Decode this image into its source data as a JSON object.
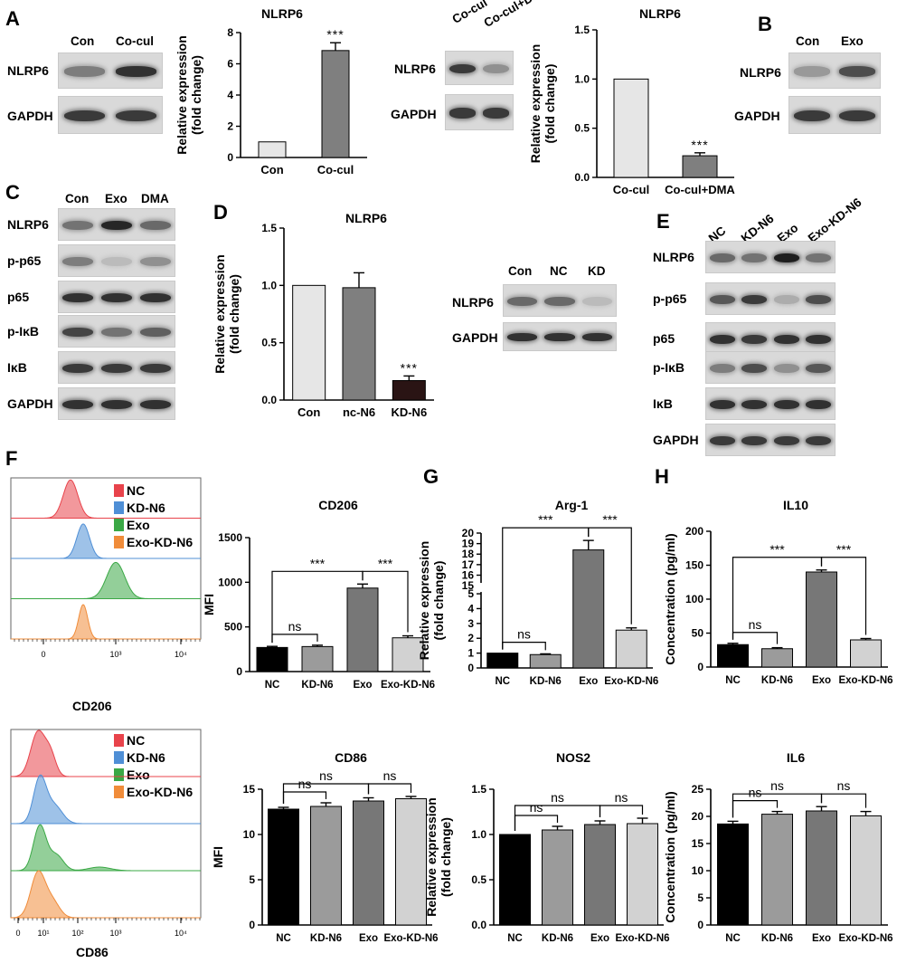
{
  "panels": {
    "A": "A",
    "B": "B",
    "C": "C",
    "D": "D",
    "E": "E",
    "F": "F",
    "G": "G",
    "H": "H"
  },
  "blots": {
    "A": {
      "lanes": [
        "Con",
        "Co-cul"
      ],
      "rows": [
        "NLRP6",
        "GAPDH"
      ],
      "intensity": [
        [
          0.45,
          0.85
        ],
        [
          0.8,
          0.8
        ]
      ]
    },
    "A2": {
      "lanes": [
        "Co-cul",
        "Co-cul+DMA"
      ],
      "rows": [
        "NLRP6",
        "GAPDH"
      ],
      "intensity": [
        [
          0.8,
          0.35
        ],
        [
          0.8,
          0.8
        ]
      ]
    },
    "B": {
      "lanes": [
        "Con",
        "Exo"
      ],
      "rows": [
        "NLRP6",
        "GAPDH"
      ],
      "intensity": [
        [
          0.3,
          0.7
        ],
        [
          0.8,
          0.8
        ]
      ]
    },
    "C": {
      "lanes": [
        "Con",
        "Exo",
        "DMA"
      ],
      "rows": [
        "NLRP6",
        "p-p65",
        "p65",
        "p-IκB",
        "IκB",
        "GAPDH"
      ],
      "intensity": [
        [
          0.5,
          0.9,
          0.55
        ],
        [
          0.45,
          0.12,
          0.35
        ],
        [
          0.85,
          0.85,
          0.85
        ],
        [
          0.75,
          0.5,
          0.6
        ],
        [
          0.8,
          0.8,
          0.8
        ],
        [
          0.85,
          0.85,
          0.85
        ]
      ]
    },
    "D": {
      "lanes": [
        "Con",
        "NC",
        "KD"
      ],
      "rows": [
        "NLRP6",
        "GAPDH"
      ],
      "intensity": [
        [
          0.55,
          0.55,
          0.12
        ],
        [
          0.85,
          0.85,
          0.85
        ]
      ]
    },
    "E": {
      "lanes": [
        "NC",
        "KD-N6",
        "Exo",
        "Exo-KD-N6"
      ],
      "rows": [
        "NLRP6",
        "p-p65",
        "p65",
        "p-IκB",
        "IκB",
        "GAPDH"
      ],
      "intensity": [
        [
          0.55,
          0.5,
          0.95,
          0.5
        ],
        [
          0.65,
          0.8,
          0.2,
          0.7
        ],
        [
          0.85,
          0.8,
          0.85,
          0.85
        ],
        [
          0.45,
          0.7,
          0.35,
          0.65
        ],
        [
          0.85,
          0.85,
          0.85,
          0.85
        ],
        [
          0.8,
          0.8,
          0.8,
          0.8
        ]
      ]
    }
  },
  "flow": {
    "legend": [
      {
        "label": "NC",
        "color": "#e8434b"
      },
      {
        "label": "KD-N6",
        "color": "#4f8fd6"
      },
      {
        "label": "Exo",
        "color": "#3aa845"
      },
      {
        "label": "Exo-KD-N6",
        "color": "#f08c3a"
      }
    ],
    "top": {
      "xlabel": "CD206",
      "ticks": [
        "0",
        "10³",
        "10⁴"
      ]
    },
    "bottom": {
      "xlabel": "CD86",
      "ticks": [
        "0",
        "10¹",
        "10²",
        "10³",
        "10⁴"
      ]
    }
  },
  "chart_data": [
    {
      "id": "A1",
      "type": "bar",
      "title": "NLRP6",
      "ylabel": "Relative expression\n(fold change)",
      "categories": [
        "Con",
        "Co-cul"
      ],
      "values": [
        1.0,
        6.85
      ],
      "errors": [
        0,
        0.5
      ],
      "ylim": [
        0,
        8
      ],
      "yticks": [
        0,
        2,
        4,
        6,
        8
      ],
      "ytick_labels": [
        "0",
        "2",
        "4",
        "6",
        "8"
      ],
      "colors": [
        "#e6e6e6",
        "#7f7f7f"
      ],
      "sig": [
        {
          "bar": 1,
          "text": "***"
        }
      ]
    },
    {
      "id": "A2",
      "type": "bar",
      "title": "NLRP6",
      "ylabel": "Relative expression\n(fold change)",
      "categories": [
        "Co-cul",
        "Co-cul+DMA"
      ],
      "values": [
        1.0,
        0.22
      ],
      "errors": [
        0,
        0.03
      ],
      "ylim": [
        0,
        1.5
      ],
      "yticks": [
        0,
        0.5,
        1.0,
        1.5
      ],
      "ytick_labels": [
        "0.0",
        "0.5",
        "1.0",
        "1.5"
      ],
      "colors": [
        "#e6e6e6",
        "#7f7f7f"
      ],
      "sig": [
        {
          "bar": 1,
          "text": "***"
        }
      ]
    },
    {
      "id": "D",
      "type": "bar",
      "title": "NLRP6",
      "ylabel": "Relative expression\n(fold change)",
      "categories": [
        "Con",
        "nc-N6",
        "KD-N6"
      ],
      "values": [
        1.0,
        0.98,
        0.17
      ],
      "errors": [
        0,
        0.13,
        0.04
      ],
      "ylim": [
        0,
        1.5
      ],
      "yticks": [
        0,
        0.5,
        1.0,
        1.5
      ],
      "ytick_labels": [
        "0.0",
        "0.5",
        "1.0",
        "1.5"
      ],
      "colors": [
        "#e6e6e6",
        "#7f7f7f",
        "#2a1414"
      ],
      "sig": [
        {
          "bar": 2,
          "text": "***"
        }
      ]
    },
    {
      "id": "F1",
      "type": "bar",
      "title": "CD206",
      "ylabel": "MFI",
      "categories": [
        "NC",
        "KD-N6",
        "Exo",
        "Exo-KD-N6"
      ],
      "values": [
        270,
        280,
        935,
        378
      ],
      "errors": [
        12,
        15,
        45,
        22
      ],
      "ylim": [
        0,
        1500
      ],
      "yticks": [
        0,
        500,
        1000,
        1500
      ],
      "ytick_labels": [
        "0",
        "500",
        "1000",
        "1500"
      ],
      "colors": [
        "#000000",
        "#9b9b9b",
        "#777777",
        "#d2d2d2"
      ],
      "brackets": [
        {
          "from": 0,
          "to": 1,
          "text": "ns",
          "level": 0
        },
        {
          "from": 0,
          "to": 2,
          "text": "***",
          "level": 1
        },
        {
          "from": 2,
          "to": 3,
          "text": "***",
          "level": 1
        }
      ]
    },
    {
      "id": "G",
      "type": "bar",
      "title": "Arg-1",
      "ylabel": "Relative expression\n(fold change)",
      "categories": [
        "NC",
        "KD-N6",
        "Exo",
        "Exo-KD-N6"
      ],
      "values": [
        1.0,
        0.9,
        18.4,
        2.55
      ],
      "errors": [
        0,
        0.05,
        0.9,
        0.15
      ],
      "ylim": [
        0,
        20
      ],
      "axis_break": [
        5,
        15
      ],
      "yticks": [
        0,
        1,
        2,
        3,
        4,
        5,
        15,
        16,
        17,
        18,
        19,
        20
      ],
      "ytick_labels": [
        "0",
        "1",
        "2",
        "3",
        "4",
        "5",
        "15",
        "16",
        "17",
        "18",
        "19",
        "20"
      ],
      "colors": [
        "#000000",
        "#9b9b9b",
        "#777777",
        "#d2d2d2"
      ],
      "brackets": [
        {
          "from": 0,
          "to": 1,
          "text": "ns",
          "level": 0
        },
        {
          "from": 0,
          "to": 2,
          "text": "***",
          "level": 1
        },
        {
          "from": 2,
          "to": 3,
          "text": "***",
          "level": 1
        }
      ]
    },
    {
      "id": "H1",
      "type": "bar",
      "title": "IL10",
      "ylabel": "Concentration (pg/ml)",
      "categories": [
        "NC",
        "KD-N6",
        "Exo",
        "Exo-KD-N6"
      ],
      "values": [
        33,
        27,
        140,
        40
      ],
      "errors": [
        2,
        1.5,
        3,
        2
      ],
      "ylim": [
        0,
        200
      ],
      "yticks": [
        0,
        50,
        100,
        150,
        200
      ],
      "ytick_labels": [
        "0",
        "50",
        "100",
        "150",
        "200"
      ],
      "colors": [
        "#000000",
        "#9b9b9b",
        "#777777",
        "#d2d2d2"
      ],
      "brackets": [
        {
          "from": 0,
          "to": 1,
          "text": "ns",
          "level": 0
        },
        {
          "from": 0,
          "to": 2,
          "text": "***",
          "level": 1
        },
        {
          "from": 2,
          "to": 3,
          "text": "***",
          "level": 1
        }
      ]
    },
    {
      "id": "F2",
      "type": "bar",
      "title": "CD86",
      "ylabel": "MFI",
      "categories": [
        "NC",
        "KD-N6",
        "Exo",
        "Exo-KD-N6"
      ],
      "values": [
        12.8,
        13.1,
        13.7,
        13.95
      ],
      "errors": [
        0.2,
        0.4,
        0.35,
        0.25
      ],
      "ylim": [
        0,
        15
      ],
      "yticks": [
        0,
        5,
        10,
        15
      ],
      "ytick_labels": [
        "0",
        "5",
        "10",
        "15"
      ],
      "colors": [
        "#000000",
        "#9b9b9b",
        "#777777",
        "#d2d2d2"
      ],
      "brackets": [
        {
          "from": 0,
          "to": 1,
          "text": "ns",
          "level": 0
        },
        {
          "from": 0,
          "to": 2,
          "text": "ns",
          "level": 1
        },
        {
          "from": 2,
          "to": 3,
          "text": "ns",
          "level": 1
        }
      ]
    },
    {
      "id": "NOS2",
      "type": "bar",
      "title": "NOS2",
      "ylabel": "Relative expression\n(fold change)",
      "categories": [
        "NC",
        "KD-N6",
        "Exo",
        "Exo-KD-N6"
      ],
      "values": [
        1.0,
        1.05,
        1.11,
        1.12
      ],
      "errors": [
        0,
        0.04,
        0.04,
        0.06
      ],
      "ylim": [
        0,
        1.5
      ],
      "yticks": [
        0,
        0.5,
        1.0,
        1.5
      ],
      "ytick_labels": [
        "0.0",
        "0.5",
        "1.0",
        "1.5"
      ],
      "colors": [
        "#000000",
        "#9b9b9b",
        "#777777",
        "#d2d2d2"
      ],
      "brackets": [
        {
          "from": 0,
          "to": 1,
          "text": "ns",
          "level": 0
        },
        {
          "from": 0,
          "to": 2,
          "text": "ns",
          "level": 1
        },
        {
          "from": 2,
          "to": 3,
          "text": "ns",
          "level": 1
        }
      ]
    },
    {
      "id": "IL6",
      "type": "bar",
      "title": "IL6",
      "ylabel": "Concentration (pg/ml)",
      "categories": [
        "NC",
        "KD-N6",
        "Exo",
        "Exo-KD-N6"
      ],
      "values": [
        18.6,
        20.4,
        21.0,
        20.1
      ],
      "errors": [
        0.5,
        0.5,
        0.8,
        0.8
      ],
      "ylim": [
        0,
        25
      ],
      "yticks": [
        0,
        5,
        10,
        15,
        20,
        25
      ],
      "ytick_labels": [
        "0",
        "5",
        "10",
        "15",
        "20",
        "25"
      ],
      "colors": [
        "#000000",
        "#9b9b9b",
        "#777777",
        "#d2d2d2"
      ],
      "brackets": [
        {
          "from": 0,
          "to": 1,
          "text": "ns",
          "level": 0
        },
        {
          "from": 0,
          "to": 2,
          "text": "ns",
          "level": 1
        },
        {
          "from": 2,
          "to": 3,
          "text": "ns",
          "level": 1
        }
      ]
    }
  ]
}
